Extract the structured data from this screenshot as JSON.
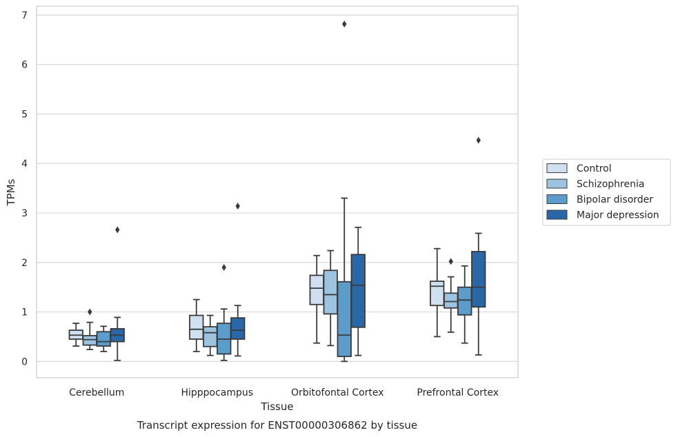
{
  "caption": "Transcript expression for ENST00000306862 by tissue",
  "chart_data": {
    "type": "boxplot",
    "xlabel": "Tissue",
    "ylabel": "TPMs",
    "ylim": [
      -0.33,
      7.18
    ],
    "yticks": [
      0,
      1,
      2,
      3,
      4,
      5,
      6,
      7
    ],
    "grid": "horizontal",
    "legend_position": "right",
    "categories": [
      "Cerebellum",
      "Hipppocampus",
      "Orbitofontal Cortex",
      "Prefrontal Cortex"
    ],
    "series": [
      {
        "name": "Control",
        "color": "#d0e0f1",
        "boxes": [
          {
            "min": 0.31,
            "q1": 0.45,
            "median": 0.53,
            "q3": 0.63,
            "max": 0.77,
            "outliers": []
          },
          {
            "min": 0.2,
            "q1": 0.45,
            "median": 0.65,
            "q3": 0.93,
            "max": 1.25,
            "outliers": []
          },
          {
            "min": 0.37,
            "q1": 1.15,
            "median": 1.48,
            "q3": 1.74,
            "max": 2.14,
            "outliers": []
          },
          {
            "min": 0.5,
            "q1": 1.13,
            "median": 1.52,
            "q3": 1.62,
            "max": 2.28,
            "outliers": []
          }
        ]
      },
      {
        "name": "Schizophrenia",
        "color": "#9cc3df",
        "boxes": [
          {
            "min": 0.24,
            "q1": 0.33,
            "median": 0.44,
            "q3": 0.52,
            "max": 0.79,
            "outliers": [
              1.0
            ]
          },
          {
            "min": 0.12,
            "q1": 0.3,
            "median": 0.58,
            "q3": 0.7,
            "max": 0.93,
            "outliers": []
          },
          {
            "min": 0.32,
            "q1": 0.96,
            "median": 1.35,
            "q3": 1.84,
            "max": 2.24,
            "outliers": []
          },
          {
            "min": 0.59,
            "q1": 1.08,
            "median": 1.21,
            "q3": 1.38,
            "max": 1.71,
            "outliers": [
              2.02
            ]
          }
        ]
      },
      {
        "name": "Bipolar disorder",
        "color": "#5b9ccb",
        "boxes": [
          {
            "min": 0.2,
            "q1": 0.31,
            "median": 0.4,
            "q3": 0.6,
            "max": 0.71,
            "outliers": []
          },
          {
            "min": 0.02,
            "q1": 0.15,
            "median": 0.45,
            "q3": 0.77,
            "max": 1.06,
            "outliers": [
              1.9
            ]
          },
          {
            "min": 0.0,
            "q1": 0.1,
            "median": 0.53,
            "q3": 1.61,
            "max": 3.3,
            "outliers": [
              6.82
            ]
          },
          {
            "min": 0.37,
            "q1": 0.94,
            "median": 1.24,
            "q3": 1.5,
            "max": 1.93,
            "outliers": []
          }
        ]
      },
      {
        "name": "Major depression",
        "color": "#2a67a6",
        "boxes": [
          {
            "min": 0.02,
            "q1": 0.4,
            "median": 0.53,
            "q3": 0.66,
            "max": 0.89,
            "outliers": [
              2.66
            ]
          },
          {
            "min": 0.11,
            "q1": 0.45,
            "median": 0.63,
            "q3": 0.88,
            "max": 1.13,
            "outliers": [
              3.14
            ]
          },
          {
            "min": 0.12,
            "q1": 0.69,
            "median": 1.54,
            "q3": 2.16,
            "max": 2.71,
            "outliers": []
          },
          {
            "min": 0.13,
            "q1": 1.1,
            "median": 1.5,
            "q3": 2.22,
            "max": 2.59,
            "outliers": [
              4.47
            ]
          }
        ]
      }
    ]
  }
}
